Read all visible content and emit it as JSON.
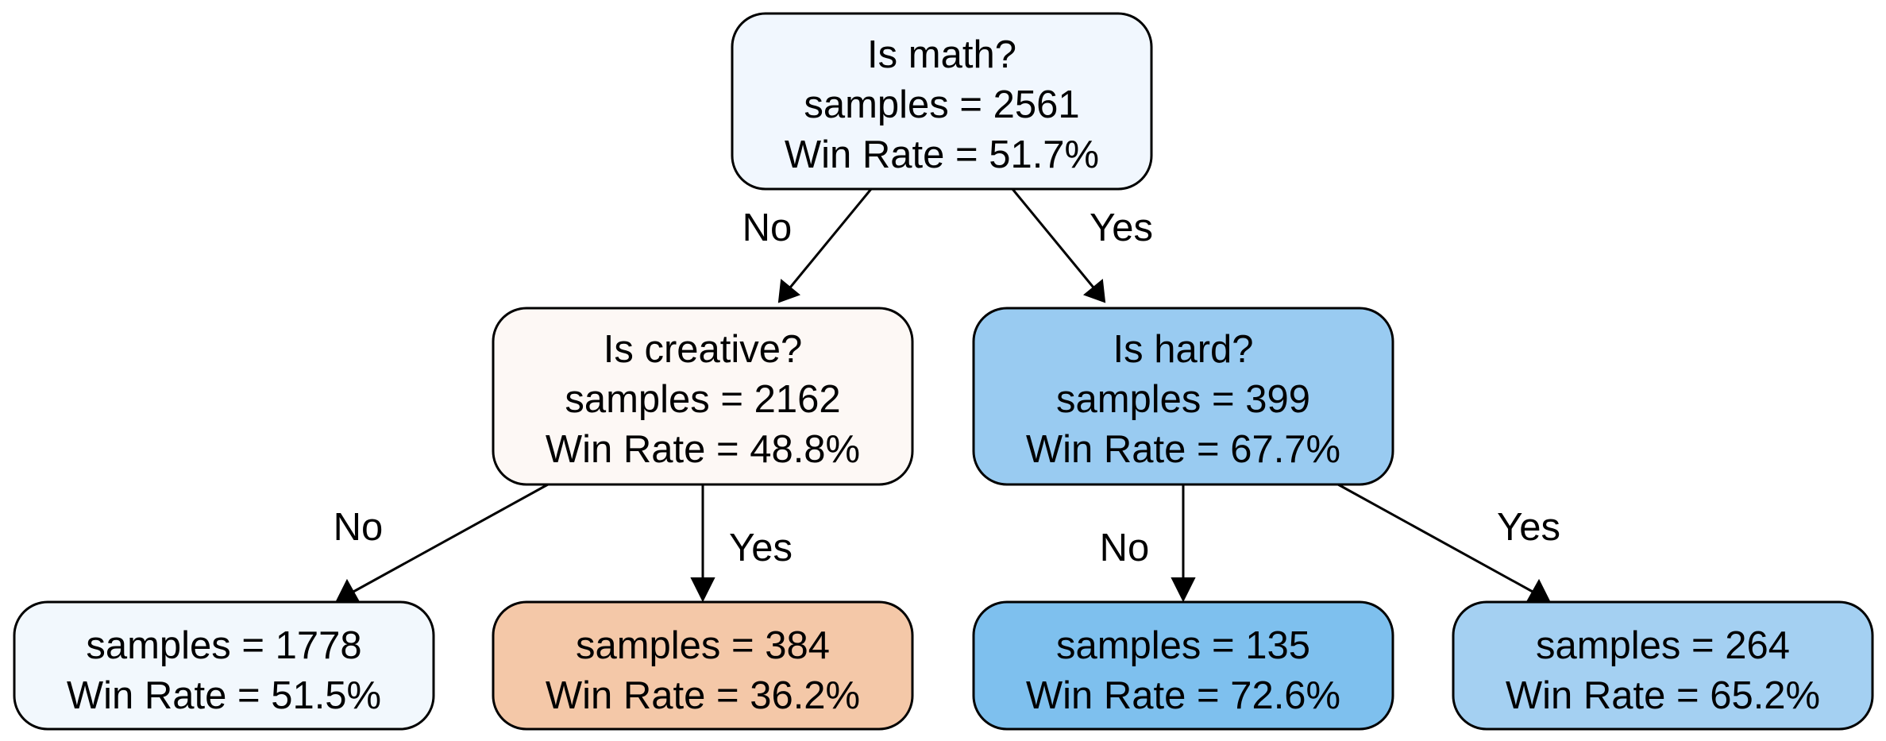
{
  "tree": {
    "root": {
      "question": "Is math?",
      "samples": "samples = 2561",
      "win_rate": "Win Rate = 51.7%",
      "fill": "#f1f7fe"
    },
    "left": {
      "question": "Is creative?",
      "samples": "samples = 2162",
      "win_rate": "Win Rate = 48.8%",
      "fill": "#fdf8f5",
      "edge_label": "No"
    },
    "right": {
      "question": "Is hard?",
      "samples": "samples = 399",
      "win_rate": "Win Rate = 67.7%",
      "fill": "#99cbf1",
      "edge_label": "Yes"
    },
    "leaves": [
      {
        "samples": "samples = 1778",
        "win_rate": "Win Rate = 51.5%",
        "fill": "#f2f8fd",
        "edge_label": "No"
      },
      {
        "samples": "samples = 384",
        "win_rate": "Win Rate = 36.2%",
        "fill": "#f4c8a8",
        "edge_label": "Yes"
      },
      {
        "samples": "samples = 135",
        "win_rate": "Win Rate = 72.6%",
        "fill": "#7ec0ee",
        "edge_label": "No"
      },
      {
        "samples": "samples = 264",
        "win_rate": "Win Rate = 65.2%",
        "fill": "#a4d0f2",
        "edge_label": "Yes"
      }
    ]
  }
}
